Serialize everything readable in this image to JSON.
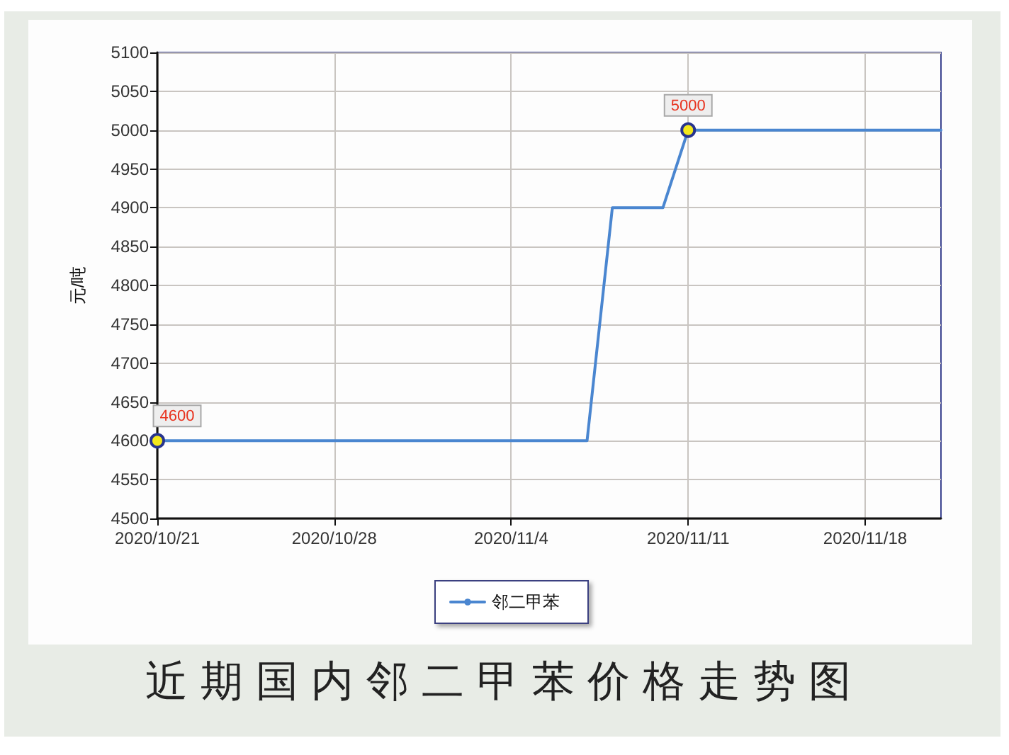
{
  "chart_data": {
    "type": "line",
    "title": "近期国内邻二甲苯价格走势图",
    "ylabel": "元/吨",
    "x": [
      "2020-10-21",
      "2020-11-07",
      "2020-11-08",
      "2020-11-10",
      "2020-11-11",
      "2020-11-21"
    ],
    "series": [
      {
        "name": "邻二甲苯",
        "color": "#4a86d0",
        "values": [
          4600,
          4600,
          4900,
          4900,
          5000,
          5000
        ],
        "marker": "none"
      },
      {
        "type": "scatter",
        "color": "#f4e81c",
        "x": [
          "2020-10-21",
          "2020-11-11"
        ],
        "values": [
          4600,
          5000
        ],
        "value_labels": [
          "4600",
          "5000"
        ],
        "marker": "circle"
      }
    ],
    "xlim": [
      "2020-10-21",
      "2020-11-21"
    ],
    "xticks": [
      {
        "value": "2020-10-21",
        "label": "2020/10/21"
      },
      {
        "value": "2020-10-28",
        "label": "2020/10/28"
      },
      {
        "value": "2020-11-04",
        "label": "2020/11/4"
      },
      {
        "value": "2020-11-11",
        "label": "2020/11/11"
      },
      {
        "value": "2020-11-18",
        "label": "2020/11/18"
      }
    ],
    "ylim": [
      4500,
      5100
    ],
    "yticks": [
      4500,
      4550,
      4600,
      4650,
      4700,
      4750,
      4800,
      4850,
      4900,
      4950,
      5000,
      5050,
      5100
    ],
    "grid": true,
    "legend": "bottom",
    "line_style": "solid"
  }
}
